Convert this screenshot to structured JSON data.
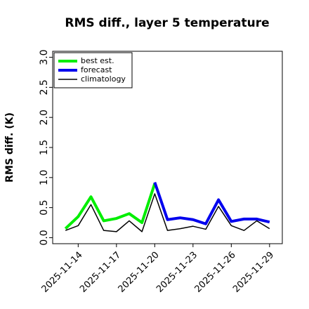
{
  "chart_data": {
    "type": "line",
    "title": "RMS diff., layer 5 temperature",
    "ylabel": "RMS diff. (K)",
    "x": [
      "2025-11-13",
      "2025-11-14",
      "2025-11-15",
      "2025-11-16",
      "2025-11-17",
      "2025-11-18",
      "2025-11-19",
      "2025-11-20",
      "2025-11-21",
      "2025-11-22",
      "2025-11-23",
      "2025-11-24",
      "2025-11-25",
      "2025-11-26",
      "2025-11-27",
      "2025-11-28",
      "2025-11-29"
    ],
    "series": [
      {
        "name": "best est.",
        "color": "#00ee00",
        "width": 4,
        "values": [
          0.15,
          0.35,
          0.68,
          0.28,
          0.32,
          0.4,
          0.25,
          0.9,
          null,
          null,
          null,
          null,
          null,
          null,
          null,
          null,
          null
        ]
      },
      {
        "name": "forecast",
        "color": "#0000ee",
        "width": 4,
        "values": [
          null,
          null,
          null,
          null,
          null,
          null,
          null,
          0.92,
          0.3,
          0.33,
          0.3,
          0.23,
          0.63,
          0.27,
          0.31,
          0.31,
          0.26
        ]
      },
      {
        "name": "climatology",
        "color": "#000000",
        "width": 1.5,
        "values": [
          0.12,
          0.2,
          0.55,
          0.12,
          0.1,
          0.28,
          0.1,
          0.73,
          0.12,
          0.15,
          0.19,
          0.14,
          0.52,
          0.2,
          0.12,
          0.28,
          0.15
        ]
      }
    ],
    "xlim": [
      "2025-11-12",
      "2025-11-30"
    ],
    "xticks": [
      "2025-11-14",
      "2025-11-17",
      "2025-11-20",
      "2025-11-23",
      "2025-11-26",
      "2025-11-29"
    ],
    "xtick_colors": [
      "#000000",
      "#000000",
      "#228b22",
      "#000000",
      "#000000",
      "#000000"
    ],
    "ylim": [
      -0.1,
      3.1
    ],
    "yticks": [
      {
        "value": 0,
        "label": "0.0"
      },
      {
        "value": 0.5,
        "label": "0.5"
      },
      {
        "value": 1,
        "label": "1.0"
      },
      {
        "value": 1.5,
        "label": "1.5"
      },
      {
        "value": 2,
        "label": "2.0"
      },
      {
        "value": 2.5,
        "label": "2.5"
      },
      {
        "value": 3,
        "label": "3.0"
      }
    ],
    "legend": "upper left"
  }
}
